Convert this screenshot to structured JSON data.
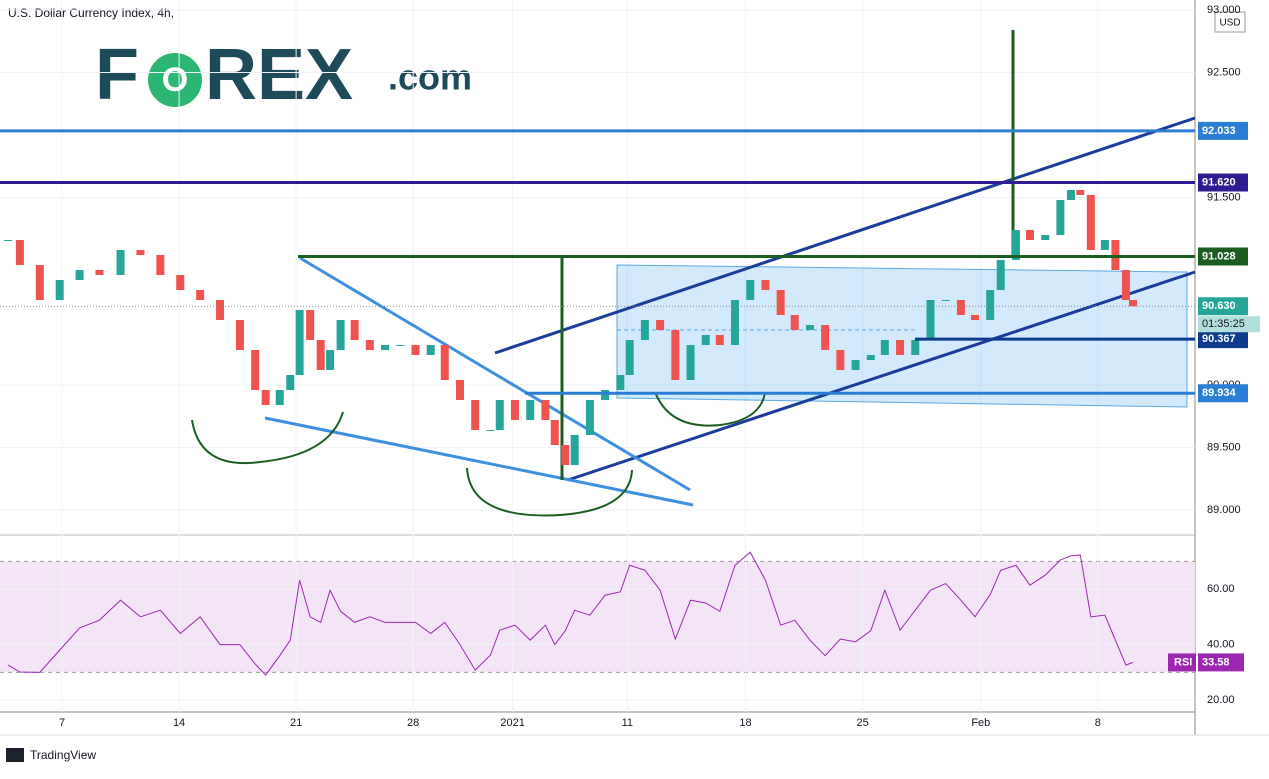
{
  "chart_data": [
    {
      "type": "candlestick",
      "title": "U.S. Dollar Currency Index, 4h,",
      "logo": [
        "F",
        "O",
        "REX",
        ".com"
      ],
      "currency": "USD",
      "footer": "TradingView",
      "x": [
        -0.46,
        -0.36,
        -0.19,
        -0.02,
        0.15,
        0.32,
        0.5,
        0.67,
        0.84,
        1.01,
        1.18,
        1.35,
        1.52,
        1.65,
        1.74,
        1.86,
        1.95,
        2.03,
        2.12,
        2.21,
        2.29,
        2.38,
        2.5,
        2.63,
        2.76,
        2.89,
        3.02,
        3.15,
        3.27,
        3.4,
        3.53,
        3.66,
        3.74,
        3.87,
        4.0,
        4.13,
        4.21,
        4.3,
        4.38,
        4.51,
        4.64,
        4.77,
        4.85,
        4.98,
        5.11,
        5.24,
        5.37,
        5.5,
        5.62,
        5.75,
        5.88,
        6.01,
        6.14,
        6.26,
        6.39,
        6.52,
        6.65,
        6.78,
        6.91,
        7.03,
        7.16,
        7.29,
        7.42,
        7.55,
        7.68,
        7.8,
        7.93,
        8.02,
        8.15,
        8.27,
        8.4,
        8.53,
        8.62,
        8.7,
        8.79,
        8.91,
        9.0,
        9.09,
        9.15
      ],
      "series": [
        {
          "name": "close",
          "up_color": "#26a69a",
          "down_color": "#ef5350",
          "values": [
            91.16,
            90.96,
            90.68,
            90.84,
            90.92,
            90.88,
            91.08,
            91.04,
            90.88,
            90.76,
            90.68,
            90.52,
            90.28,
            89.96,
            89.84,
            89.96,
            90.08,
            90.6,
            90.36,
            90.12,
            90.28,
            90.52,
            90.36,
            90.28,
            90.32,
            90.32,
            90.24,
            90.32,
            90.04,
            89.88,
            89.64,
            89.64,
            89.88,
            89.72,
            89.88,
            89.72,
            89.52,
            89.36,
            89.6,
            89.88,
            89.96,
            90.08,
            90.36,
            90.52,
            90.44,
            90.04,
            90.32,
            90.4,
            90.32,
            90.68,
            90.84,
            90.76,
            90.56,
            90.44,
            90.48,
            90.28,
            90.12,
            90.2,
            90.24,
            90.36,
            90.24,
            90.36,
            90.68,
            90.68,
            90.56,
            90.52,
            90.76,
            91.0,
            91.24,
            91.16,
            91.2,
            91.48,
            91.56,
            91.52,
            91.08,
            91.16,
            90.92,
            90.68,
            90.63
          ]
        }
      ],
      "xlim": [
        -0.53,
        9.68
      ],
      "xticks": [
        {
          "value": 0,
          "label": "7"
        },
        {
          "value": 1,
          "label": "14"
        },
        {
          "value": 2,
          "label": "21"
        },
        {
          "value": 3,
          "label": "28"
        },
        {
          "value": 3.85,
          "label": "2021"
        },
        {
          "value": 4.83,
          "label": "11"
        },
        {
          "value": 5.84,
          "label": "18"
        },
        {
          "value": 6.84,
          "label": "25"
        },
        {
          "value": 7.85,
          "label": "Feb"
        },
        {
          "value": 8.85,
          "label": "8"
        }
      ],
      "ylim": [
        88.8,
        93.08
      ],
      "yticks": [
        {
          "value": 89,
          "label": "89.000"
        },
        {
          "value": 89.5,
          "label": "89.500"
        },
        {
          "value": 90,
          "label": "90.000"
        },
        {
          "value": 91.5,
          "label": "91.500"
        },
        {
          "value": 92.5,
          "label": "92.500"
        },
        {
          "value": 93,
          "label": "93.000"
        }
      ],
      "levels": [
        {
          "value": 92.033,
          "label": "92.033",
          "color": "#2a7fd4"
        },
        {
          "value": 91.62,
          "label": "91.620",
          "color": "#311b92"
        },
        {
          "value": 91.028,
          "label": "91.028",
          "color": "#1b5e20"
        },
        {
          "value": 90.367,
          "label": "90.367",
          "color": "#0d3c8c"
        },
        {
          "value": 89.934,
          "label": "89.934",
          "color": "#2a7fd4"
        }
      ],
      "last_price": {
        "value": 90.63,
        "label": "90.630",
        "color": "#26a69a"
      },
      "countdown": "01:35:25",
      "grid": true
    },
    {
      "type": "line",
      "series": [
        {
          "name": "RSI",
          "color": "#9c27b0",
          "values": [
            32.6,
            30.1,
            30,
            38,
            46,
            48.8,
            56,
            50,
            52.4,
            44,
            50,
            40,
            40,
            33,
            29,
            36,
            41.6,
            63.2,
            50,
            48,
            59.6,
            52,
            48,
            50,
            48,
            48,
            48,
            44,
            48,
            40,
            30.8,
            36.2,
            45.2,
            47,
            41.6,
            47,
            40,
            45,
            52.4,
            50.6,
            57.8,
            59,
            68.6,
            66.8,
            59.6,
            42,
            56,
            55,
            52,
            68.6,
            73.3,
            63.2,
            47,
            48.8,
            41.6,
            36,
            42,
            41,
            45,
            59.6,
            45.2,
            52.4,
            59.6,
            62,
            56,
            50,
            58,
            66.8,
            68.6,
            61.4,
            65,
            70.5,
            72,
            72.3,
            50,
            50.6,
            41.6,
            32.6,
            33.58
          ]
        }
      ],
      "ylim": [
        15.7,
        79.5
      ],
      "yticks": [
        {
          "value": 20,
          "label": "20.00"
        },
        {
          "value": 40,
          "label": "40.00"
        },
        {
          "value": 60,
          "label": "60.00"
        }
      ],
      "band": [
        30,
        70
      ],
      "band_color": "#f3e5f5"
    }
  ]
}
